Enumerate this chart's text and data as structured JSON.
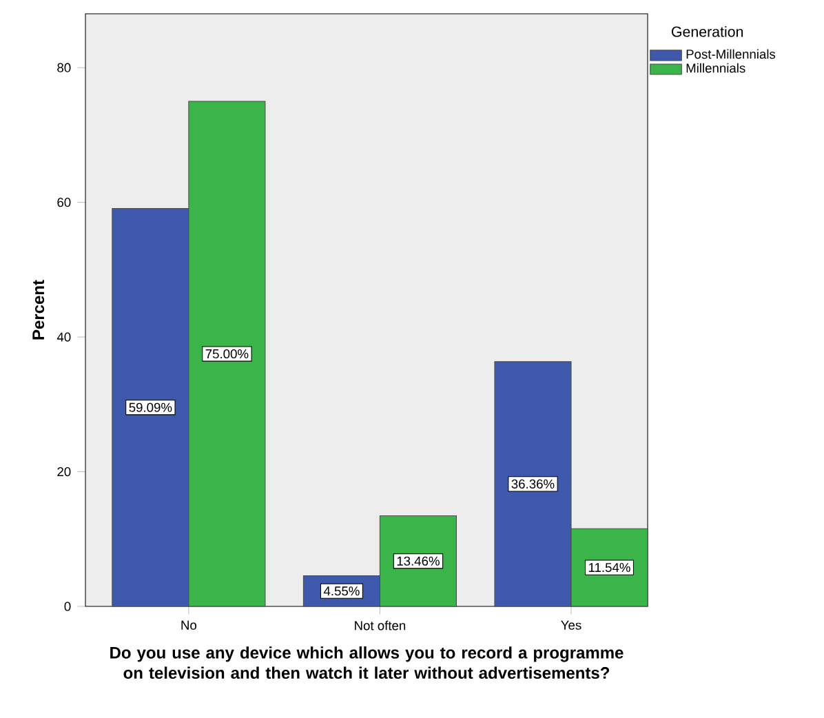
{
  "chart_data": {
    "type": "bar",
    "xlabel": "Do you use any device which allows you to record a programme on television and then watch it later without advertisements?",
    "ylabel": "Percent",
    "legend_title": "Generation",
    "categories": [
      "No",
      "Not often",
      "Yes"
    ],
    "series": [
      {
        "name": "Post-Millennials",
        "color": "#3e58ac",
        "values": [
          59.09,
          4.55,
          36.36
        ],
        "value_labels": [
          "59.09%",
          "4.55%",
          "36.36%"
        ]
      },
      {
        "name": "Millennials",
        "color": "#3bb44a",
        "values": [
          75.0,
          13.46,
          11.54
        ],
        "value_labels": [
          "75.00%",
          "13.46%",
          "11.54%"
        ]
      }
    ],
    "ylim": [
      0,
      88
    ],
    "yticks": [
      0,
      20,
      40,
      60,
      80
    ],
    "legend": "top right",
    "grid": false
  }
}
